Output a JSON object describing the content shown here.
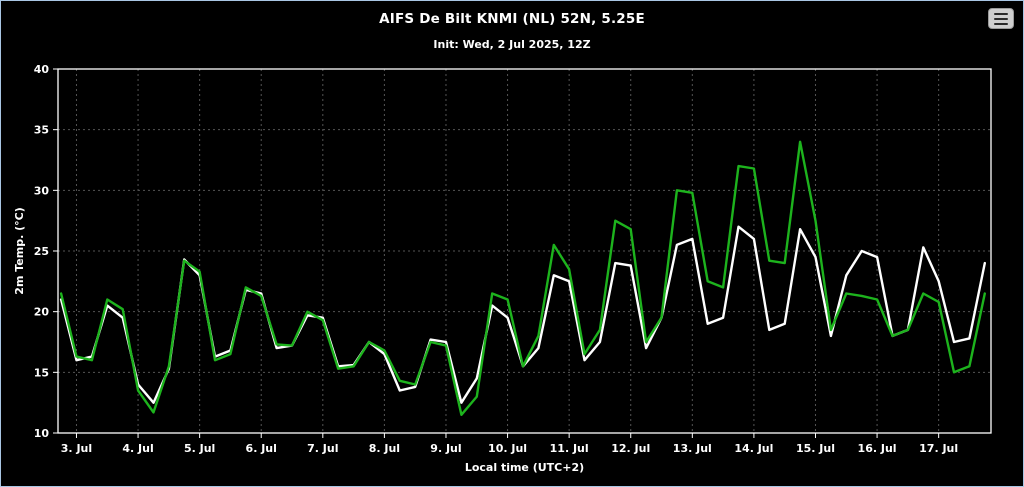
{
  "header": {
    "title": "AIFS De Bilt KNMI (NL) 52N, 5.25E",
    "subtitle": "Init: Wed, 2 Jul 2025, 12Z",
    "menu_icon": "hamburger-menu-icon"
  },
  "colors": {
    "background": "#000000",
    "frame_border": "#a9c6e4",
    "axis": "#ffffff",
    "grid": "#9a9a9a",
    "series_white": "#ffffff",
    "series_green": "#1db31d"
  },
  "chart_data": {
    "type": "line",
    "title": "AIFS De Bilt KNMI (NL) 52N, 5.25E",
    "subtitle": "Init: Wed, 2 Jul 2025, 12Z",
    "xlabel": "Local time (UTC+2)",
    "ylabel": "2m Temp. (°C)",
    "ylim": [
      10,
      40
    ],
    "yticks": [
      10,
      15,
      20,
      25,
      30,
      35,
      40
    ],
    "xlim": [
      2.7,
      17.85
    ],
    "xticks": [
      3,
      4,
      5,
      6,
      7,
      8,
      9,
      10,
      11,
      12,
      13,
      14,
      15,
      16,
      17
    ],
    "xtick_labels": [
      "3. Jul",
      "4. Jul",
      "5. Jul",
      "6. Jul",
      "7. Jul",
      "8. Jul",
      "9. Jul",
      "10. Jul",
      "11. Jul",
      "12. Jul",
      "13. Jul",
      "14. Jul",
      "15. Jul",
      "16. Jul",
      "17. Jul"
    ],
    "grid": "dashed",
    "legend": "none",
    "x_start": 2.75,
    "x_step": 0.25,
    "series": [
      {
        "name": "white-line",
        "color": "#ffffff",
        "values": [
          21,
          16,
          16.3,
          20.5,
          19.5,
          14,
          12.5,
          15.3,
          24.3,
          23,
          16.3,
          16.8,
          21.8,
          21.5,
          17,
          17.2,
          19.7,
          19.5,
          15.5,
          15.6,
          17.5,
          16.5,
          13.5,
          13.8,
          17.7,
          17.5,
          12.5,
          14.5,
          20.5,
          19.5,
          15.5,
          17,
          23,
          22.5,
          16,
          17.5,
          24,
          23.8,
          17,
          19.5,
          25.5,
          26,
          19,
          19.5,
          27,
          26,
          18.5,
          19,
          26.8,
          24.5,
          18,
          23,
          25,
          24.5,
          18,
          18.5,
          25.3,
          22.5,
          17.5,
          17.8,
          24
        ]
      },
      {
        "name": "green-line",
        "color": "#1db31d",
        "values": [
          21.5,
          16.3,
          16,
          21,
          20.2,
          13.5,
          11.7,
          15.5,
          24.2,
          23.3,
          16,
          16.5,
          22,
          21.3,
          17.3,
          17.2,
          20,
          19.3,
          15.3,
          15.5,
          17.5,
          16.8,
          14.3,
          14,
          17.5,
          17.2,
          11.5,
          13,
          21.5,
          21,
          15.5,
          18,
          25.5,
          23.5,
          16.5,
          18.5,
          27.5,
          26.8,
          17.5,
          19.5,
          30,
          29.8,
          22.5,
          22,
          32,
          31.8,
          24.2,
          24,
          34,
          27.5,
          18.5,
          21.5,
          21.3,
          21,
          18,
          18.5,
          21.5,
          20.8,
          15,
          15.5,
          21.5
        ]
      }
    ]
  }
}
